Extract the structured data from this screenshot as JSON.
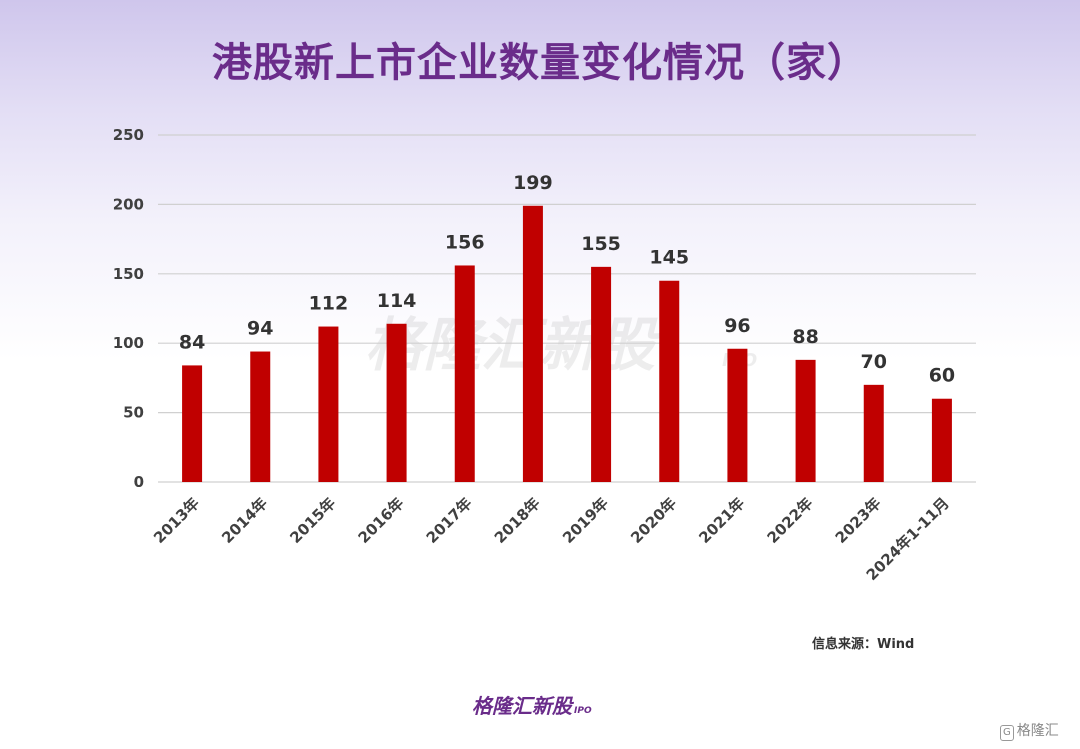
{
  "title": "港股新上市企业数量变化情况（家）",
  "source": "信息来源：Wind",
  "watermark": "格隆汇新股",
  "watermark_sub": "IPO",
  "footer": {
    "logo_text": "格隆汇新股",
    "logo_sub": "IPO"
  },
  "corner_badge": {
    "icon_letter": "G",
    "text": "格隆汇"
  },
  "colors": {
    "bar": "#c00000",
    "title": "#6a2c8a",
    "grid": "#d0d0d0"
  },
  "chart_data": {
    "type": "bar",
    "title": "港股新上市企业数量变化情况（家）",
    "categories": [
      "2013年",
      "2014年",
      "2015年",
      "2016年",
      "2017年",
      "2018年",
      "2019年",
      "2020年",
      "2021年",
      "2022年",
      "2023年",
      "2024年1-11月"
    ],
    "values": [
      84,
      94,
      112,
      114,
      156,
      199,
      155,
      145,
      96,
      88,
      70,
      60
    ],
    "yticks": [
      0,
      50,
      100,
      150,
      200,
      250
    ],
    "ylim": [
      0,
      250
    ],
    "xlabel": "",
    "ylabel": "",
    "grid": true,
    "legend": "none",
    "data_labels": true
  }
}
